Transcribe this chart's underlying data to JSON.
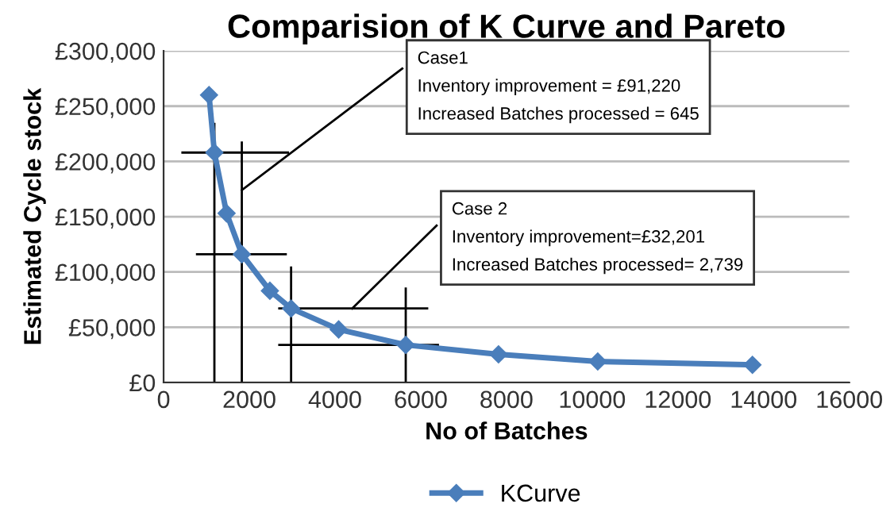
{
  "chart_data": {
    "type": "line",
    "title": "Comparision of K Curve and Pareto",
    "xlabel": "No of Batches",
    "ylabel": "Estimated Cycle stock",
    "series": [
      {
        "name": "KCurve",
        "color": "#4a7ebb",
        "x": [
          1060,
          1185,
          1470,
          1825,
          2480,
          2975,
          4085,
          5650,
          7815,
          10130,
          13740
        ],
        "values": [
          260000,
          208000,
          153000,
          116000,
          83000,
          67000,
          48000,
          34000,
          25500,
          19000,
          16000
        ],
        "marker": "diamond"
      },
      {
        "type": "line",
        "color": "#000000",
        "marker": "none",
        "x": [
          1185,
          1185,
          null,
          440,
          2900,
          null,
          1825,
          1825,
          null,
          780,
          2850,
          null,
          2975,
          2975,
          null,
          2700,
          6150,
          null,
          5650,
          5650,
          null,
          2700,
          6400,
          null,
          1825,
          5570,
          null,
          4400,
          6370
        ],
        "values": [
          0,
          234000,
          null,
          208000,
          208000,
          null,
          0,
          217000,
          null,
          116000,
          116000,
          null,
          0,
          104000,
          null,
          67000,
          67000,
          null,
          0,
          85000,
          null,
          34000,
          34000,
          null,
          174000,
          284000,
          null,
          67000,
          142000
        ]
      }
    ],
    "annotations": [
      "Case1\nInventory improvement = £91,220\nIncreased Batches processed = 645",
      "Case 2\nInventory improvement=£32,201\nIncreased Batches processed= 2,739"
    ],
    "xlim": [
      0,
      16000
    ],
    "xticks": [
      0,
      2000,
      4000,
      6000,
      8000,
      10000,
      12000,
      14000,
      16000
    ],
    "ylim": [
      0,
      300000
    ],
    "yticks": [
      {
        "value": 0,
        "label": "£0"
      },
      {
        "value": 50000,
        "label": "£50,000"
      },
      {
        "value": 100000,
        "label": "£100,000"
      },
      {
        "value": 150000,
        "label": "£150,000"
      },
      {
        "value": 200000,
        "label": "£200,000"
      },
      {
        "value": 250000,
        "label": "£250,000"
      },
      {
        "value": 300000,
        "label": "£300,000"
      }
    ],
    "grid": "y",
    "legend": "bottom",
    "line_style": "solid"
  }
}
